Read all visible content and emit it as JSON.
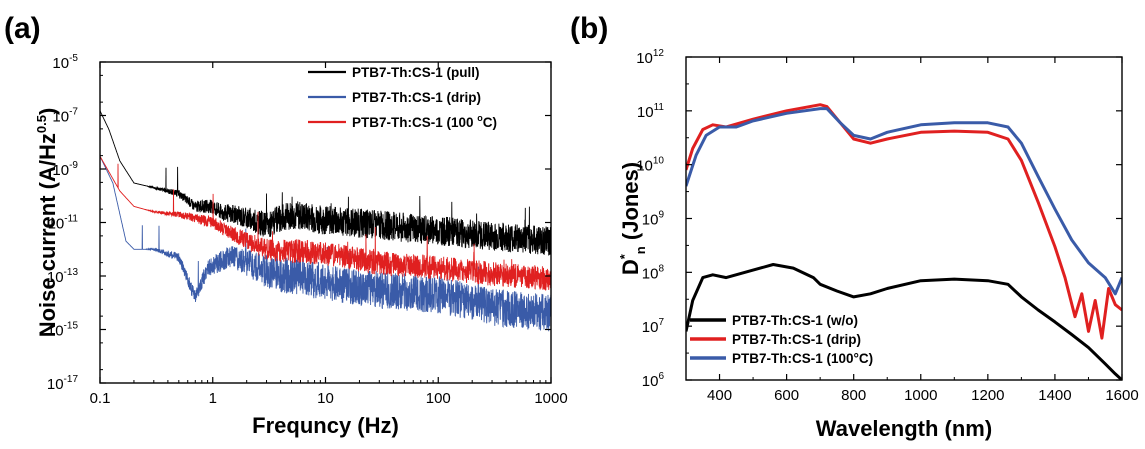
{
  "panels": [
    {
      "label": "(a)",
      "chart_data": {
        "type": "line",
        "xscale": "log",
        "yscale": "log",
        "xlim": [
          0.1,
          1000
        ],
        "ylim": [
          1e-17,
          1e-05
        ],
        "xticks": [
          {
            "v": 0.1,
            "label": "0.1"
          },
          {
            "v": 1,
            "label": "1"
          },
          {
            "v": 10,
            "label": "10"
          },
          {
            "v": 100,
            "label": "100"
          },
          {
            "v": 1000,
            "label": "1000"
          }
        ],
        "yticks": [
          {
            "v": 1e-17,
            "base": "10",
            "exp": "-17"
          },
          {
            "v": 1e-15,
            "base": "10",
            "exp": "-15"
          },
          {
            "v": 1e-13,
            "base": "10",
            "exp": "-13"
          },
          {
            "v": 1e-11,
            "base": "10",
            "exp": "-11"
          },
          {
            "v": 1e-09,
            "base": "10",
            "exp": "-9"
          },
          {
            "v": 1e-07,
            "base": "10",
            "exp": "-7"
          },
          {
            "v": 1e-05,
            "base": "10",
            "exp": "-5"
          }
        ],
        "xlabel": "Frequncy (Hz)",
        "ylabel": {
          "main": "Noise current (A/Hz",
          "sup": "0.5",
          "end": ")"
        },
        "legend_position": "top-right",
        "series": [
          {
            "name": "PTB7-Th:CS-1 (pull)",
            "color": "#000000",
            "noise_decades": 0.55,
            "points": [
              [
                0.1,
                1.5e-07
              ],
              [
                0.12,
                3e-08
              ],
              [
                0.15,
                2e-09
              ],
              [
                0.2,
                3e-10
              ],
              [
                0.3,
                2e-10
              ],
              [
                0.4,
                1.5e-10
              ],
              [
                0.5,
                1.2e-10
              ],
              [
                0.7,
                4e-11
              ],
              [
                1,
                4e-11
              ],
              [
                1.2,
                2.5e-11
              ],
              [
                1.5,
                2e-11
              ],
              [
                2,
                1.5e-11
              ],
              [
                3,
                8e-12
              ],
              [
                5,
                2e-11
              ],
              [
                10,
                1.2e-11
              ],
              [
                30,
                8e-12
              ],
              [
                100,
                5e-12
              ],
              [
                300,
                3e-12
              ],
              [
                1000,
                2e-12
              ]
            ]
          },
          {
            "name": "PTB7-Th:CS-1 (drip)",
            "color": "#3a5ba8",
            "noise_decades": 0.7,
            "points": [
              [
                0.1,
                3e-09
              ],
              [
                0.13,
                3e-10
              ],
              [
                0.17,
                2e-12
              ],
              [
                0.2,
                1e-12
              ],
              [
                0.3,
                1e-12
              ],
              [
                0.5,
                5e-13
              ],
              [
                0.7,
                1.5e-14
              ],
              [
                0.9,
                2e-13
              ],
              [
                1.5,
                6e-13
              ],
              [
                3,
                1.5e-13
              ],
              [
                10,
                6e-14
              ],
              [
                30,
                3e-14
              ],
              [
                100,
                2e-14
              ],
              [
                300,
                7e-15
              ],
              [
                1000,
                4e-15
              ]
            ]
          },
          {
            "name": "PTB7-Th:CS-1 (100 °C)",
            "legend_text": "PTB7-Th:CS-1 (100",
            "legend_sup": "o",
            "legend_end": "C)",
            "color": "#e02020",
            "noise_decades": 0.45,
            "points": [
              [
                0.1,
                3e-09
              ],
              [
                0.15,
                1.5e-10
              ],
              [
                0.2,
                4e-11
              ],
              [
                0.3,
                2.5e-11
              ],
              [
                0.5,
                2e-11
              ],
              [
                1,
                1e-11
              ],
              [
                1.5,
                4e-12
              ],
              [
                2,
                2e-12
              ],
              [
                3,
                1e-12
              ],
              [
                10,
                7e-13
              ],
              [
                30,
                3e-13
              ],
              [
                100,
                2e-13
              ],
              [
                300,
                1.2e-13
              ],
              [
                1000,
                8e-14
              ]
            ]
          }
        ]
      }
    },
    {
      "label": "(b)",
      "chart_data": {
        "type": "line",
        "xscale": "linear",
        "yscale": "log",
        "xlim": [
          300,
          1600
        ],
        "ylim": [
          1000000.0,
          1000000000000.0
        ],
        "xticks": [
          {
            "v": 400,
            "label": "400"
          },
          {
            "v": 600,
            "label": "600"
          },
          {
            "v": 800,
            "label": "800"
          },
          {
            "v": 1000,
            "label": "1000"
          },
          {
            "v": 1200,
            "label": "1200"
          },
          {
            "v": 1400,
            "label": "1400"
          },
          {
            "v": 1600,
            "label": "1600"
          }
        ],
        "yticks": [
          {
            "v": 1000000.0,
            "base": "10",
            "exp": "6"
          },
          {
            "v": 10000000.0,
            "base": "10",
            "exp": "7"
          },
          {
            "v": 100000000.0,
            "base": "10",
            "exp": "8"
          },
          {
            "v": 1000000000.0,
            "base": "10",
            "exp": "9"
          },
          {
            "v": 10000000000.0,
            "base": "10",
            "exp": "10"
          },
          {
            "v": 100000000000.0,
            "base": "10",
            "exp": "11"
          },
          {
            "v": 1000000000000.0,
            "base": "10",
            "exp": "12"
          }
        ],
        "xlabel": "Wavelength (nm)",
        "ylabel": {
          "main": "D",
          "sup": "*",
          "sub": "n",
          "end": " (Jones)"
        },
        "legend_position": "bottom-left",
        "series": [
          {
            "name": "PTB7-Th:CS-1 (w/o)",
            "color": "#000000",
            "points": [
              [
                300,
                8000000.0
              ],
              [
                320,
                30000000.0
              ],
              [
                350,
                80000000.0
              ],
              [
                380,
                90000000.0
              ],
              [
                420,
                80000000.0
              ],
              [
                500,
                110000000.0
              ],
              [
                560,
                140000000.0
              ],
              [
                620,
                120000000.0
              ],
              [
                680,
                80000000.0
              ],
              [
                700,
                60000000.0
              ],
              [
                750,
                45000000.0
              ],
              [
                800,
                35000000.0
              ],
              [
                850,
                40000000.0
              ],
              [
                900,
                50000000.0
              ],
              [
                1000,
                70000000.0
              ],
              [
                1100,
                75000000.0
              ],
              [
                1200,
                70000000.0
              ],
              [
                1260,
                60000000.0
              ],
              [
                1300,
                35000000.0
              ],
              [
                1350,
                20000000.0
              ],
              [
                1400,
                12000000.0
              ],
              [
                1450,
                7000000.0
              ],
              [
                1500,
                4000000.0
              ],
              [
                1550,
                2000000.0
              ],
              [
                1580,
                1300000.0
              ],
              [
                1600,
                1000000.0
              ]
            ]
          },
          {
            "name": "PTB7-Th:CS-1 (drip)",
            "color": "#e02020",
            "points": [
              [
                300,
                8000000000.0
              ],
              [
                320,
                20000000000.0
              ],
              [
                350,
                45000000000.0
              ],
              [
                380,
                55000000000.0
              ],
              [
                420,
                50000000000.0
              ],
              [
                500,
                70000000000.0
              ],
              [
                600,
                100000000000.0
              ],
              [
                700,
                130000000000.0
              ],
              [
                720,
                120000000000.0
              ],
              [
                760,
                60000000000.0
              ],
              [
                800,
                30000000000.0
              ],
              [
                850,
                25000000000.0
              ],
              [
                900,
                30000000000.0
              ],
              [
                1000,
                40000000000.0
              ],
              [
                1100,
                42000000000.0
              ],
              [
                1200,
                40000000000.0
              ],
              [
                1260,
                30000000000.0
              ],
              [
                1300,
                12000000000.0
              ],
              [
                1350,
                2000000000.0
              ],
              [
                1400,
                300000000.0
              ],
              [
                1430,
                80000000.0
              ],
              [
                1460,
                15000000.0
              ],
              [
                1480,
                40000000.0
              ],
              [
                1500,
                8000000.0
              ],
              [
                1520,
                30000000.0
              ],
              [
                1540,
                6000000.0
              ],
              [
                1560,
                50000000.0
              ],
              [
                1580,
                25000000.0
              ],
              [
                1600,
                20000000.0
              ]
            ]
          },
          {
            "name": "PTB7-Th:CS-1 (100°C)",
            "color": "#3a5ba8",
            "points": [
              [
                300,
                4000000000.0
              ],
              [
                330,
                15000000000.0
              ],
              [
                360,
                35000000000.0
              ],
              [
                400,
                50000000000.0
              ],
              [
                450,
                50000000000.0
              ],
              [
                500,
                65000000000.0
              ],
              [
                600,
                90000000000.0
              ],
              [
                700,
                110000000000.0
              ],
              [
                720,
                110000000000.0
              ],
              [
                760,
                60000000000.0
              ],
              [
                800,
                35000000000.0
              ],
              [
                850,
                30000000000.0
              ],
              [
                900,
                40000000000.0
              ],
              [
                1000,
                55000000000.0
              ],
              [
                1100,
                60000000000.0
              ],
              [
                1200,
                60000000000.0
              ],
              [
                1260,
                50000000000.0
              ],
              [
                1300,
                25000000000.0
              ],
              [
                1350,
                6000000000.0
              ],
              [
                1400,
                1500000000.0
              ],
              [
                1450,
                400000000.0
              ],
              [
                1500,
                150000000.0
              ],
              [
                1550,
                80000000.0
              ],
              [
                1580,
                40000000.0
              ],
              [
                1600,
                80000000.0
              ]
            ]
          }
        ]
      }
    }
  ]
}
